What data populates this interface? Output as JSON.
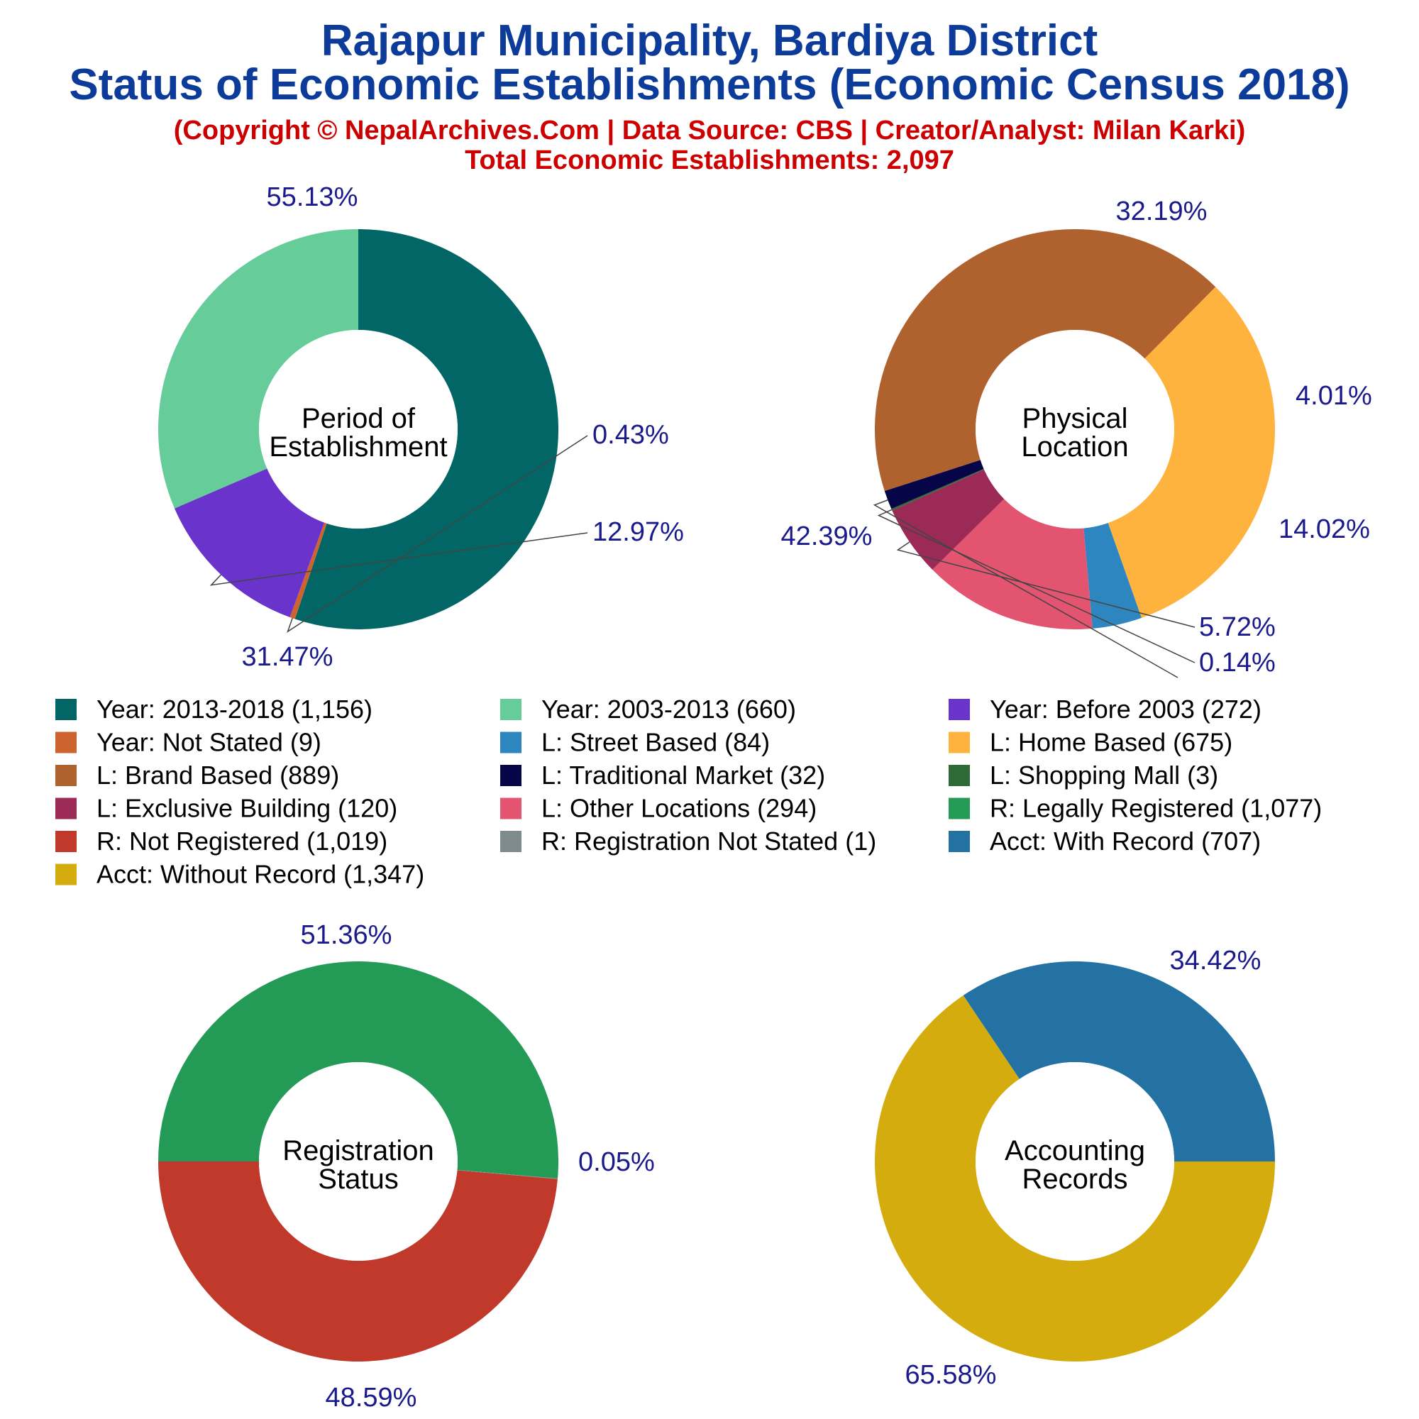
{
  "header": {
    "title_line1": "Rajapur Municipality, Bardiya District",
    "title_line2": "Status of Economic Establishments (Economic Census 2018)",
    "copyright": "(Copyright © NepalArchives.Com | Data Source: CBS | Creator/Analyst: Milan Karki)",
    "total": "Total Economic Establishments: 2,097"
  },
  "chart_data": [
    {
      "type": "pie",
      "center_label": [
        "Period of",
        "Establishment"
      ],
      "slices": [
        {
          "label": "Year: 2013-2018 (1,156)",
          "value": 1156,
          "percent": "55.13%",
          "color": "#026666"
        },
        {
          "label": "Year: Not Stated (9)",
          "value": 9,
          "percent": "0.43%",
          "color": "#cd6430"
        },
        {
          "label": "Year: Before 2003 (272)",
          "value": 272,
          "percent": "12.97%",
          "color": "#6a33cc"
        },
        {
          "label": "Year: 2003-2013 (660)",
          "value": 660,
          "percent": "31.47%",
          "color": "#66cc99"
        }
      ]
    },
    {
      "type": "pie",
      "center_label": [
        "Physical",
        "Location"
      ],
      "slices": [
        {
          "label": "L: Home Based (675)",
          "value": 675,
          "percent": "32.19%",
          "color": "#ffb33f"
        },
        {
          "label": "L: Street Based (84)",
          "value": 84,
          "percent": "4.01%",
          "color": "#2e86c1"
        },
        {
          "label": "L: Other Locations (294)",
          "value": 294,
          "percent": "14.02%",
          "color": "#e35471"
        },
        {
          "label": "L: Exclusive Building (120)",
          "value": 120,
          "percent": "5.72%",
          "color": "#9b2a56"
        },
        {
          "label": "L: Shopping Mall (3)",
          "value": 3,
          "percent": "0.14%",
          "color": "#2e6b37"
        },
        {
          "label": "L: Traditional Market (32)",
          "value": 32,
          "percent": "",
          "color": "#050547"
        },
        {
          "label": "L: Brand Based (889)",
          "value": 889,
          "percent": "42.39%",
          "color": "#b0622e"
        }
      ]
    },
    {
      "type": "pie",
      "center_label": [
        "Registration",
        "Status"
      ],
      "slices": [
        {
          "label": "R: Legally Registered (1,077)",
          "value": 1077,
          "percent": "51.36%",
          "color": "#239b56"
        },
        {
          "label": "R: Registration Not Stated (1)",
          "value": 1,
          "percent": "0.05%",
          "color": "#7f8c8d"
        },
        {
          "label": "R: Not Registered (1,019)",
          "value": 1019,
          "percent": "48.59%",
          "color": "#c0392b"
        }
      ]
    },
    {
      "type": "pie",
      "center_label": [
        "Accounting",
        "Records"
      ],
      "slices": [
        {
          "label": "Acct: With Record (707)",
          "value": 707,
          "percent": "34.42%",
          "color": "#2471a3"
        },
        {
          "label": "Acct: Without Record (1,347)",
          "value": 1347,
          "percent": "65.58%",
          "color": "#d4ac0d"
        }
      ]
    }
  ],
  "legend": [
    {
      "label": "Year: 2013-2018 (1,156)",
      "color": "#026666"
    },
    {
      "label": "Year: 2003-2013 (660)",
      "color": "#66cc99"
    },
    {
      "label": "Year: Before 2003 (272)",
      "color": "#6a33cc"
    },
    {
      "label": "Year: Not Stated (9)",
      "color": "#cd6430"
    },
    {
      "label": "L: Street Based (84)",
      "color": "#2e86c1"
    },
    {
      "label": "L: Home Based (675)",
      "color": "#ffb33f"
    },
    {
      "label": "L: Brand Based (889)",
      "color": "#b0622e"
    },
    {
      "label": "L: Traditional Market (32)",
      "color": "#050547"
    },
    {
      "label": "L: Shopping Mall (3)",
      "color": "#2e6b37"
    },
    {
      "label": "L: Exclusive Building (120)",
      "color": "#9b2a56"
    },
    {
      "label": "L: Other Locations (294)",
      "color": "#e35471"
    },
    {
      "label": "R: Legally Registered (1,077)",
      "color": "#239b56"
    },
    {
      "label": "R: Not Registered (1,019)",
      "color": "#c0392b"
    },
    {
      "label": "R: Registration Not Stated (1)",
      "color": "#7f8c8d"
    },
    {
      "label": "Acct: With Record (707)",
      "color": "#2471a3"
    },
    {
      "label": "Acct: Without Record (1,347)",
      "color": "#d4ac0d"
    }
  ]
}
